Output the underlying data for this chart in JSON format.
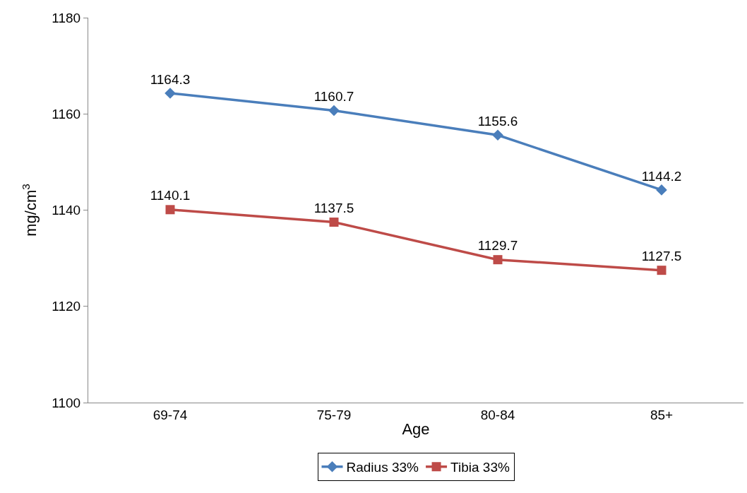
{
  "chart_data": {
    "type": "line",
    "xlabel": "Age",
    "ylabel": "mg/cm$^{3}$",
    "categories": [
      "69-74",
      "75-79",
      "80-84",
      "85+"
    ],
    "series": [
      {
        "name": "Radius 33%",
        "color": "#4a7ebb",
        "marker": "diamond",
        "values": [
          1164.3,
          1160.7,
          1155.6,
          1144.2
        ]
      },
      {
        "name": "Tibia 33%",
        "color": "#be4b48",
        "marker": "square",
        "values": [
          1140.1,
          1137.5,
          1129.7,
          1127.5
        ]
      }
    ],
    "ylim": [
      1100,
      1180
    ],
    "yticks": [
      1100,
      1120,
      1140,
      1160,
      1180
    ],
    "legend": "bottom",
    "data_labels": true,
    "line_style": "solid"
  }
}
